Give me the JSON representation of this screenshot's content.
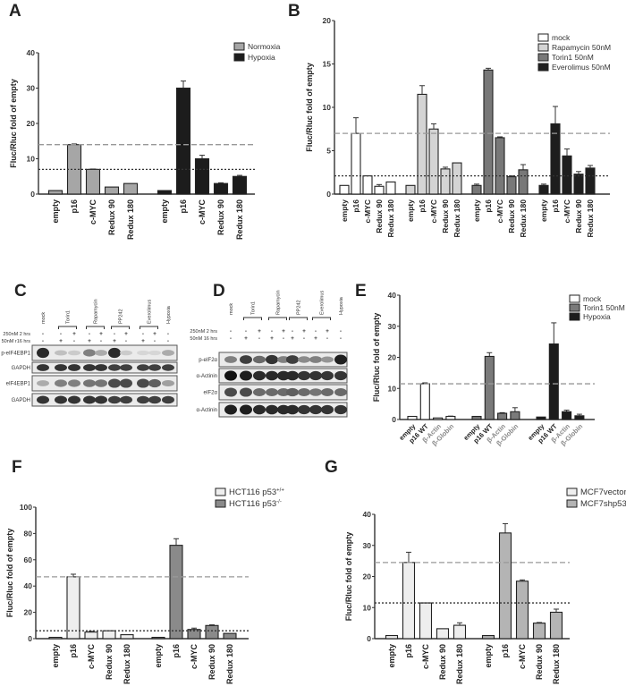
{
  "panels": {
    "A": "A",
    "B": "B",
    "C": "C",
    "D": "D",
    "E": "E",
    "F": "F",
    "G": "G"
  },
  "chart_data": [
    {
      "id": "A",
      "type": "bar",
      "ylabel": "Fluc/Rluc fold of empty",
      "ylim": [
        0,
        40
      ],
      "yticks": [
        0,
        10,
        20,
        30,
        40
      ],
      "categories": [
        "empty",
        "p16",
        "c-MYC",
        "Redux 90",
        "Redux 180"
      ],
      "legend_position": "top-right",
      "series": [
        {
          "name": "Normoxia",
          "color": "#a6a6a6",
          "values": [
            1,
            14,
            7,
            2,
            3
          ],
          "errors": [
            0,
            0.2,
            0.1,
            0,
            0
          ]
        },
        {
          "name": "Hypoxia",
          "color": "#1c1c1c",
          "values": [
            1,
            30,
            10,
            3,
            5
          ],
          "errors": [
            0,
            2,
            1,
            0.2,
            0.3
          ]
        }
      ],
      "reference_lines": [
        {
          "y": 14,
          "style": "dashed",
          "color": "#999999"
        },
        {
          "y": 7,
          "style": "dotted",
          "color": "#333333"
        }
      ]
    },
    {
      "id": "B",
      "type": "bar",
      "ylabel": "Fluc/Rluc fold of empty",
      "ylim": [
        0,
        20
      ],
      "yticks": [
        0,
        5,
        10,
        15,
        20
      ],
      "categories": [
        "empty",
        "p16",
        "c-MYC",
        "Redux 90",
        "Redux 180"
      ],
      "legend_position": "top-right",
      "series": [
        {
          "name": "mock",
          "color": "#ffffff",
          "values": [
            1,
            7,
            2.1,
            0.9,
            1.4
          ],
          "errors": [
            0,
            1.8,
            0,
            0.2,
            0
          ]
        },
        {
          "name": "Rapamycin 50nM",
          "color": "#d4d4d4",
          "values": [
            1,
            11.5,
            7.5,
            2.9,
            3.6
          ],
          "errors": [
            0,
            1,
            0.6,
            0.2,
            0
          ]
        },
        {
          "name": "Torin1 50nM",
          "color": "#787878",
          "values": [
            1,
            14.3,
            6.5,
            2,
            2.8
          ],
          "errors": [
            0.15,
            0.2,
            0.1,
            0.1,
            0.6
          ]
        },
        {
          "name": "Everolimus 50nM",
          "color": "#1e1e1e",
          "values": [
            1,
            8.1,
            4.4,
            2.3,
            3
          ],
          "errors": [
            0.15,
            2,
            0.8,
            0.3,
            0.3
          ]
        }
      ],
      "reference_lines": [
        {
          "y": 7,
          "style": "dashed",
          "color": "#999999"
        },
        {
          "y": 2.1,
          "style": "dotted",
          "color": "#333333"
        }
      ]
    },
    {
      "id": "E",
      "type": "bar",
      "ylabel": "Fluc/Rluc fold of empty",
      "ylim": [
        0,
        40
      ],
      "yticks": [
        0,
        10,
        20,
        30,
        40
      ],
      "categories": [
        "empty",
        "p16 WT",
        "β-Actin",
        "β-Globin"
      ],
      "legend_position": "top-right",
      "series": [
        {
          "name": "mock",
          "color": "#ffffff",
          "values": [
            1,
            11.5,
            0.5,
            1
          ],
          "errors": [
            0,
            0.3,
            0,
            0.1
          ]
        },
        {
          "name": "Torin1 50nM",
          "color": "#7a7a7a",
          "values": [
            1,
            20.3,
            2,
            2.5
          ],
          "errors": [
            0,
            1.2,
            0.2,
            1.3
          ]
        },
        {
          "name": "Hypoxia",
          "color": "#1c1c1c",
          "values": [
            0.8,
            24.3,
            2.5,
            1.2
          ],
          "errors": [
            0,
            6.8,
            0.5,
            0.5
          ]
        }
      ],
      "reference_lines": [
        {
          "y": 11.5,
          "style": "dashed",
          "color": "#999999"
        }
      ]
    },
    {
      "id": "F",
      "type": "bar",
      "ylabel": "Fluc/Rluc fold of empty",
      "ylim": [
        0,
        100
      ],
      "yticks": [
        0,
        20,
        40,
        60,
        80,
        100
      ],
      "categories": [
        "empty",
        "p16",
        "c-MYC",
        "Redux 90",
        "Redux 180"
      ],
      "legend_position": "top-right",
      "series": [
        {
          "name": "HCT116 p53",
          "name_sup": "+/+",
          "color": "#eeeeee",
          "values": [
            1,
            47,
            5,
            6,
            3
          ],
          "errors": [
            0,
            2,
            0.6,
            0,
            0
          ]
        },
        {
          "name": "HCT116 p53",
          "name_sup": "-/-",
          "color": "#8a8a8a",
          "values": [
            1,
            71,
            7,
            10,
            4
          ],
          "errors": [
            0,
            5,
            1,
            0.5,
            0
          ]
        }
      ],
      "reference_lines": [
        {
          "y": 47,
          "style": "dashed",
          "color": "#999999"
        },
        {
          "y": 6,
          "style": "dotted",
          "color": "#333333"
        }
      ]
    },
    {
      "id": "G",
      "type": "bar",
      "ylabel": "Fluc/Rluc fold of empty",
      "ylim": [
        0,
        40
      ],
      "yticks": [
        0,
        10,
        20,
        30,
        40
      ],
      "categories": [
        "empty",
        "p16",
        "c-MYC",
        "Redux 90",
        "Redux 180"
      ],
      "legend_position": "top-right",
      "series": [
        {
          "name": "MCF7vector",
          "color": "#eeeeee",
          "values": [
            1,
            24.5,
            11.5,
            3.2,
            4.3
          ],
          "errors": [
            0,
            3.3,
            0,
            0,
            0.8
          ]
        },
        {
          "name": "MCF7shp53",
          "color": "#b4b4b4",
          "values": [
            1,
            34,
            18.5,
            5,
            8.5
          ],
          "errors": [
            0,
            3,
            0.4,
            0.2,
            1
          ]
        }
      ],
      "reference_lines": [
        {
          "y": 24.5,
          "style": "dashed",
          "color": "#999999"
        },
        {
          "y": 11.5,
          "style": "dotted",
          "color": "#333333"
        }
      ]
    }
  ],
  "blots": [
    {
      "id": "C",
      "lane_groups": [
        "mock",
        "Torin1",
        "Rapamycin",
        "PP242",
        "Everolimus",
        "Hypoxia"
      ],
      "treatments": [
        {
          "label": "250nM 2 hrs",
          "values": [
            "-",
            "-",
            "+",
            "-",
            "+",
            "-",
            "+",
            "-",
            "+",
            "-"
          ]
        },
        {
          "label": "50nM r16 hrs",
          "values": [
            "-",
            "+",
            "-",
            "+",
            "-",
            "+",
            "-",
            "+",
            "-",
            "-"
          ]
        }
      ],
      "rows": [
        {
          "label": "p-eIF4EBP1",
          "intensity": [
            0.9,
            0.2,
            0.15,
            0.5,
            0.3,
            0.9,
            0.15,
            0.1,
            0.1,
            0.3
          ]
        },
        {
          "label": "GAPDH",
          "intensity": [
            0.85,
            0.85,
            0.85,
            0.85,
            0.85,
            0.8,
            0.8,
            0.8,
            0.8,
            0.8
          ]
        },
        {
          "label": "eIF4EBP1",
          "intensity": [
            0.3,
            0.5,
            0.5,
            0.55,
            0.55,
            0.75,
            0.75,
            0.75,
            0.65,
            0.35
          ]
        },
        {
          "label": "GAPDH",
          "intensity": [
            0.85,
            0.85,
            0.85,
            0.85,
            0.85,
            0.8,
            0.8,
            0.8,
            0.8,
            0.8
          ]
        }
      ]
    },
    {
      "id": "D",
      "lane_groups": [
        "mock",
        "Torin1",
        "Rapamycin",
        "PP242",
        "Everolimus",
        "Hypoxia"
      ],
      "treatments": [
        {
          "label": "250nM 2 hrs",
          "values": [
            "-",
            "-",
            "+",
            "-",
            "+",
            "-",
            "+",
            "-",
            "+",
            "-"
          ]
        },
        {
          "label": "50nM  16 hrs",
          "values": [
            "-",
            "+",
            "-",
            "+",
            "-",
            "+",
            "-",
            "+",
            "-",
            "-"
          ]
        }
      ],
      "rows": [
        {
          "label": "p-eIF2α",
          "intensity": [
            0.5,
            0.8,
            0.6,
            0.85,
            0.5,
            0.8,
            0.45,
            0.5,
            0.4,
            0.95
          ]
        },
        {
          "label": "α-Actinin",
          "intensity": [
            1,
            0.95,
            0.9,
            0.9,
            0.9,
            0.9,
            0.85,
            0.85,
            0.85,
            0.85
          ]
        },
        {
          "label": "eIF2α",
          "intensity": [
            0.75,
            0.75,
            0.6,
            0.6,
            0.6,
            0.65,
            0.6,
            0.55,
            0.6,
            0.6
          ]
        },
        {
          "label": "α-Actinin",
          "intensity": [
            0.95,
            0.95,
            0.9,
            0.9,
            0.9,
            0.9,
            0.85,
            0.85,
            0.85,
            0.85
          ]
        }
      ]
    }
  ]
}
